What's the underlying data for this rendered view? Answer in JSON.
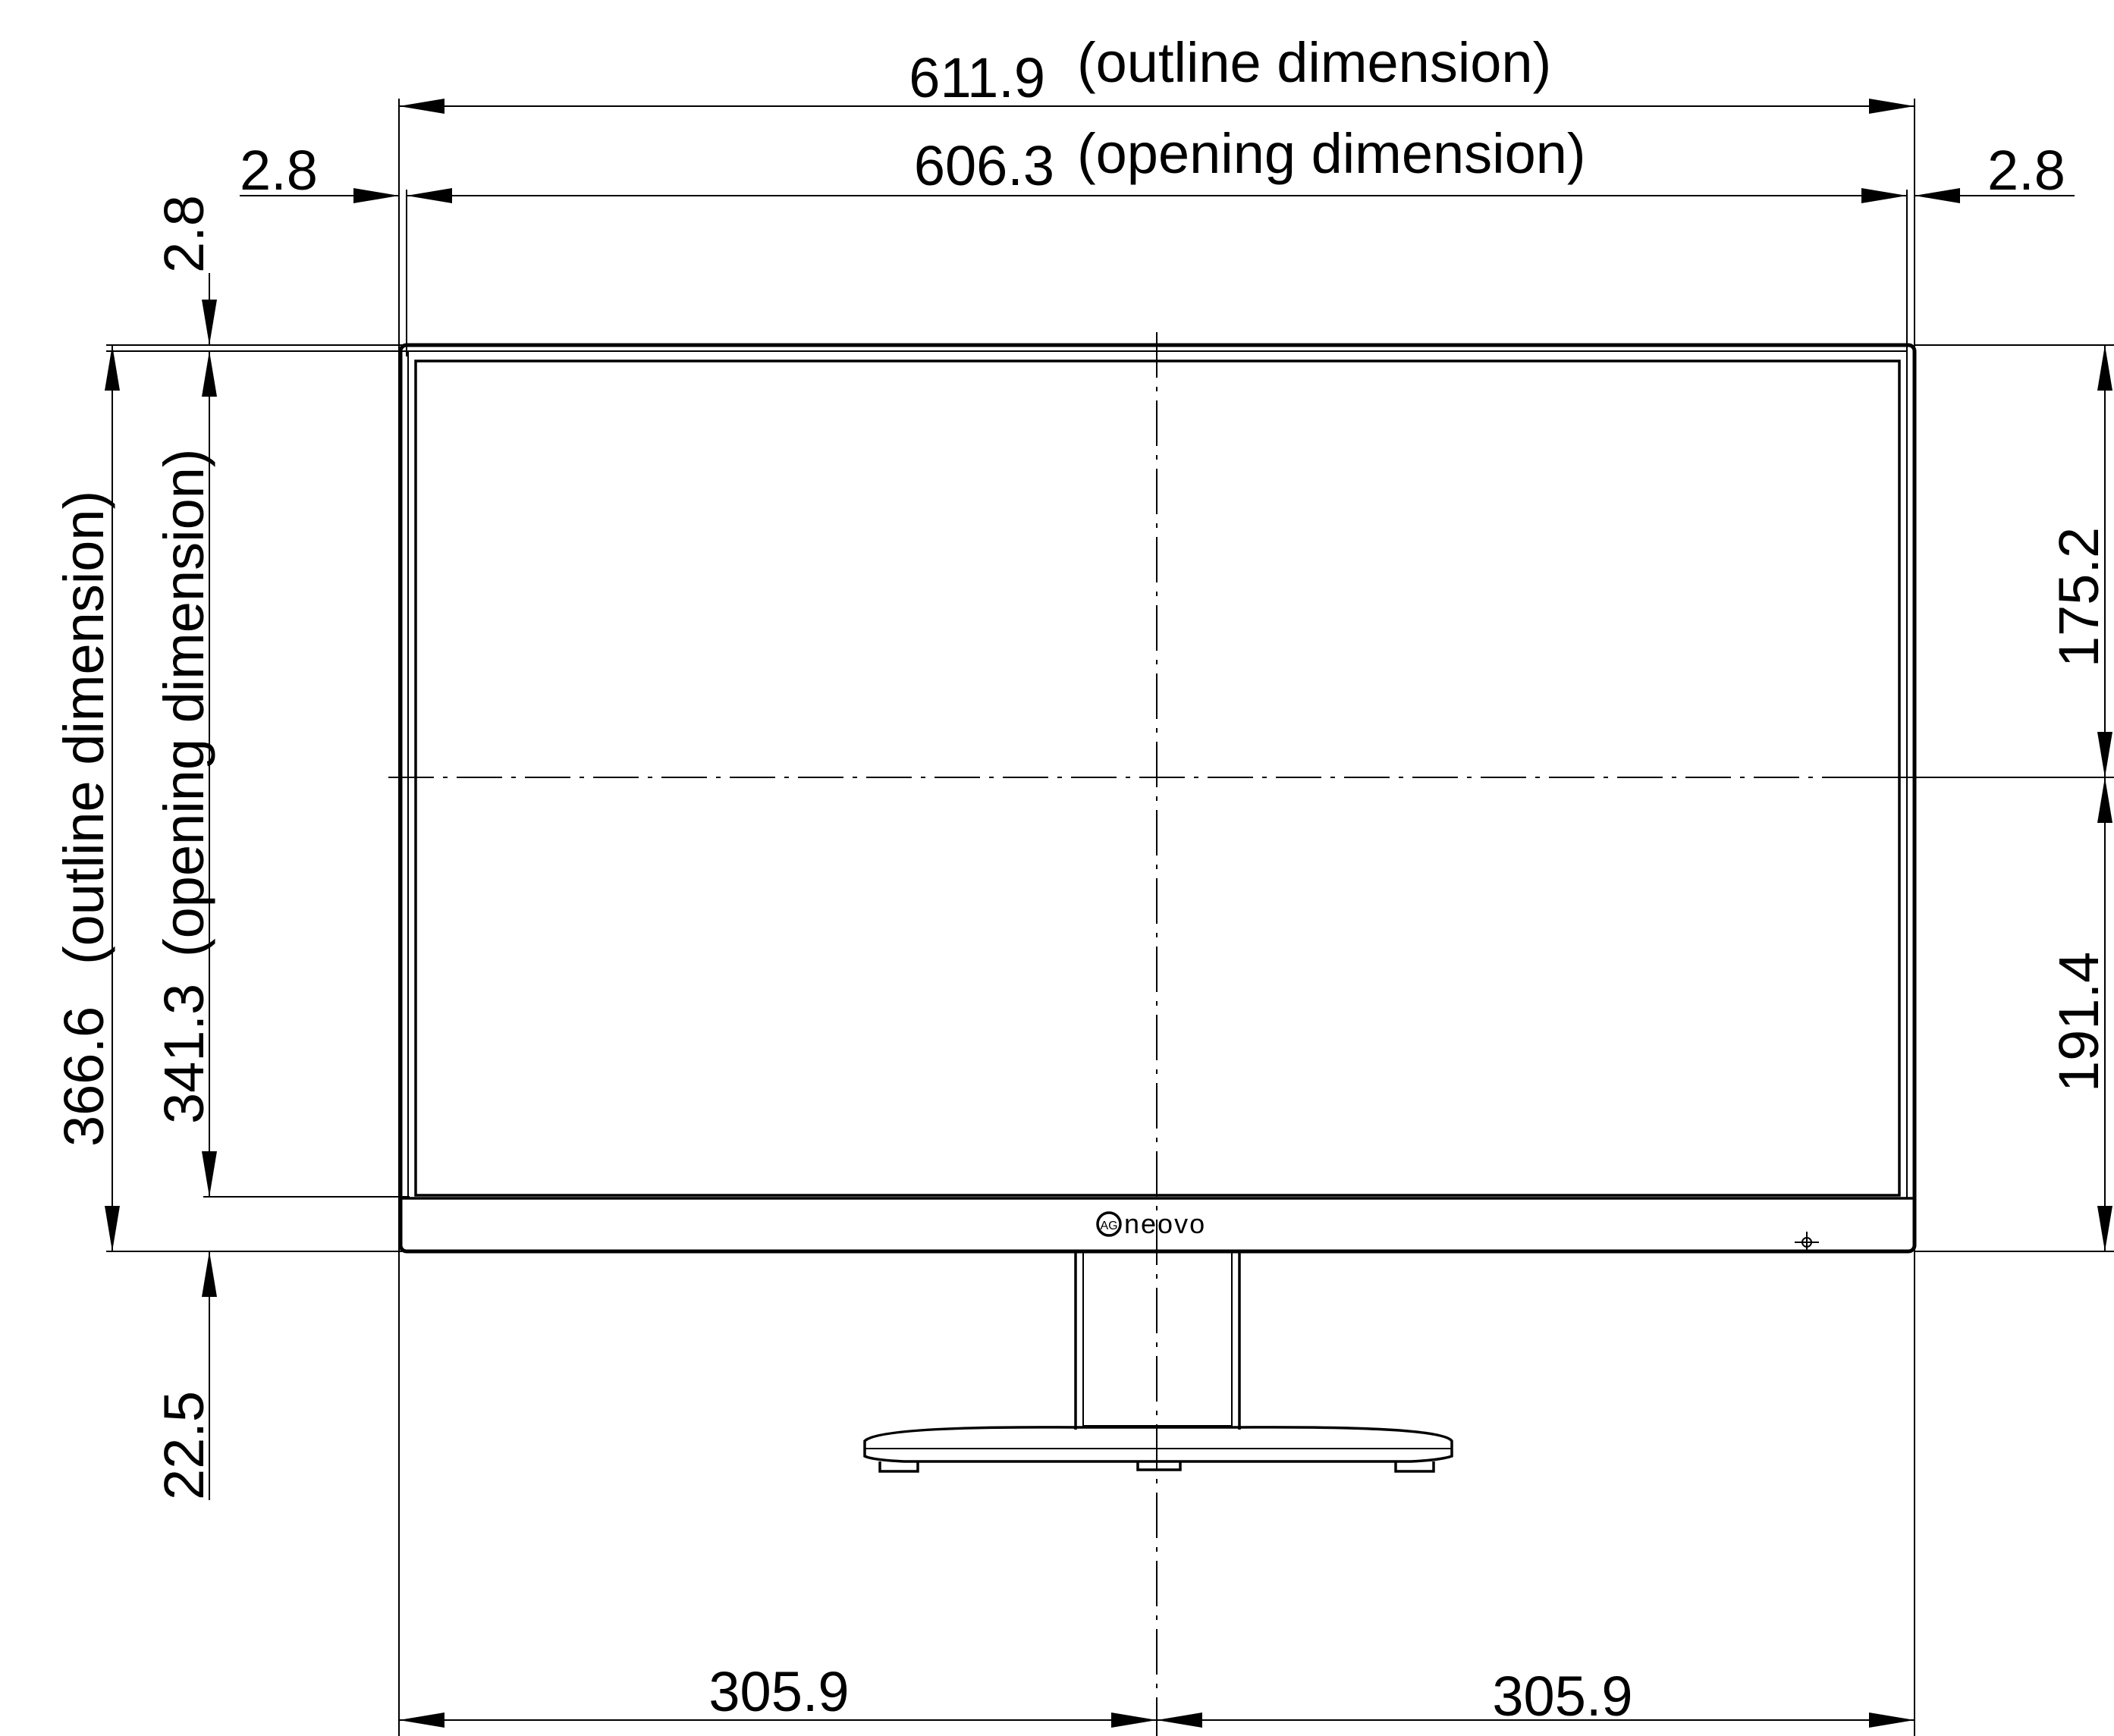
{
  "dimensions": {
    "outline_width": "611.9",
    "outline_width_note": "(outline dimension)",
    "opening_width": "606.3",
    "opening_width_note": "(opening dimension)",
    "bezel_left": "2.8",
    "bezel_right": "2.8",
    "bezel_top": "2.8",
    "outline_height": "366.6",
    "outline_height_note": "(outline dimension)",
    "opening_height": "341.3",
    "opening_height_note": "(opening dimension)",
    "upper_to_center": "175.2",
    "center_to_bottom": "191.4",
    "bottom_bezel": "22.5",
    "half_width_left": "305.9",
    "half_width_right": "305.9"
  },
  "logo": {
    "brand": "neovo",
    "mark": "AG"
  },
  "icons": {
    "power": "power-led-icon",
    "arrow": "arrowhead-icon"
  }
}
